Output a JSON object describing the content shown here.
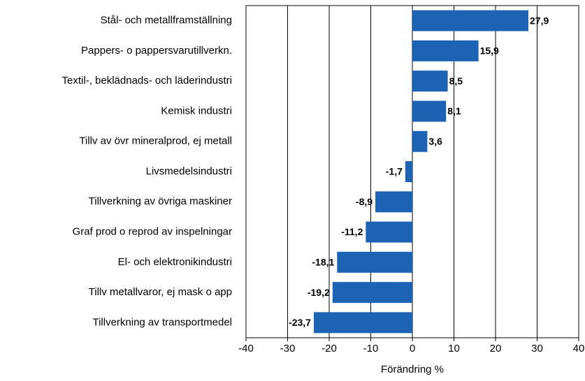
{
  "chart_data": {
    "type": "barh",
    "categories": [
      "Stål- och metallframställning",
      "Pappers- o pappersvarutillverkn.",
      "Textil-, beklädnads- och läderindustri",
      "Kemisk industri",
      "Tillv av övr mineralprod, ej metall",
      "Livsmedelsindustri",
      "Tillverkning av övriga maskiner",
      "Graf prod o reprod av inspelningar",
      "El- och elektronikindustri",
      "Tillv metallvaror, ej mask o app",
      "Tillverkning av transportmedel"
    ],
    "values": [
      27.9,
      15.9,
      8.5,
      8.1,
      3.6,
      -1.7,
      -8.9,
      -11.2,
      -18.1,
      -19.2,
      -23.7
    ],
    "value_labels": [
      "27,9",
      "15,9",
      "8,5",
      "8,1",
      "3,6",
      "-1,7",
      "-8,9",
      "-11,2",
      "-18,1",
      "-19,2",
      "-23,7"
    ],
    "color": "#1c63b4",
    "xlim": [
      -40,
      40
    ],
    "xticks": [
      -40,
      -30,
      -20,
      -10,
      0,
      10,
      20,
      30,
      40
    ],
    "xlabel": "Förändring %",
    "grid": true
  }
}
